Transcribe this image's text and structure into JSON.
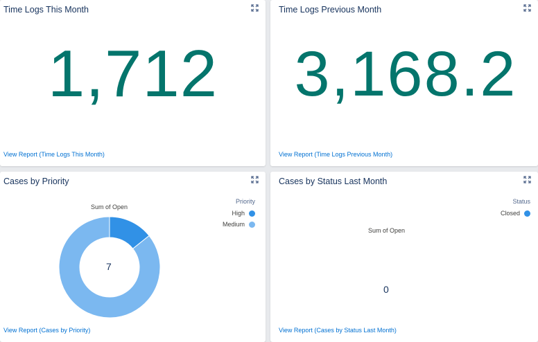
{
  "cards": {
    "this_month": {
      "title": "Time Logs This Month",
      "value": "1,712",
      "link": "View Report (Time Logs This Month)"
    },
    "prev_month": {
      "title": "Time Logs Previous Month",
      "value": "3,168.2",
      "link": "View Report (Time Logs Previous Month)"
    },
    "priority": {
      "title": "Cases by Priority",
      "link": "View Report (Cases by Priority)"
    },
    "status": {
      "title": "Cases by Status Last Month",
      "link": "View Report (Cases by Status Last Month)"
    }
  },
  "icons": {
    "expand": "expand-icon"
  },
  "colors": {
    "metric": "#04756c",
    "link": "#0070d2",
    "high": "#3191e6",
    "medium": "#7bb8f0",
    "closed": "#3191e6"
  },
  "chart_data": [
    {
      "type": "pie",
      "donut": true,
      "title": "Sum of Open",
      "legend_title": "Priority",
      "legend_position": "top-right",
      "categories": [
        "High",
        "Medium"
      ],
      "values": [
        1,
        6
      ],
      "total": "7"
    },
    {
      "type": "pie",
      "donut": true,
      "title": "Sum of Open",
      "legend_title": "Status",
      "legend_position": "top-right",
      "categories": [
        "Closed"
      ],
      "values": [
        0
      ],
      "total": "0"
    }
  ]
}
